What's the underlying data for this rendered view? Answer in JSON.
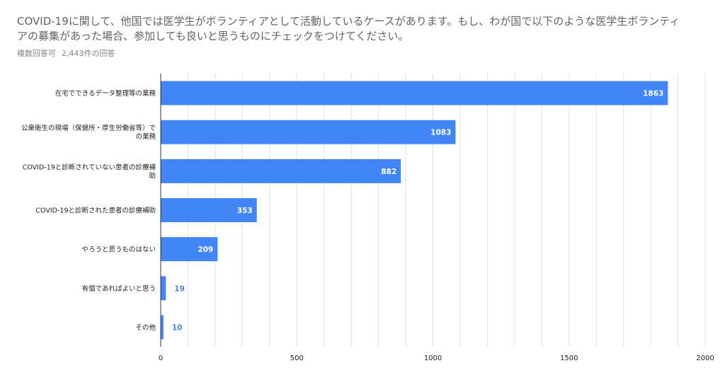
{
  "question": {
    "title_line1": "COVID-19に関して、他国では医学生がボランティアとして活動しているケースがあります。もし、わが国で以下のような医学生ボランティ",
    "title_line2": "アの募集があった場合、参加しても良いと思うものにチェックをつけてください。",
    "answer_type": "複数回答可",
    "response_count": "2,443件の回答"
  },
  "colors": {
    "bar": "#4285f4",
    "grid": "#e0e0e0",
    "axis": "#333333",
    "outside_label": "#4285f4"
  },
  "chart_data": {
    "type": "bar",
    "orientation": "horizontal",
    "categories": [
      [
        "在宅でできるデータ整理等の業務"
      ],
      [
        "公衆衛生の現場（保健所・厚生労働省等）で",
        "の業務"
      ],
      [
        "COVID-19と診断されていない患者の診療補",
        "助"
      ],
      [
        "COVID-19と診断された患者の診療補助"
      ],
      [
        "やろうと思うものはない"
      ],
      [
        "有償であればよいと思う"
      ],
      [
        "その他"
      ]
    ],
    "values": [
      1863,
      1083,
      882,
      353,
      209,
      19,
      10
    ],
    "xlim": [
      0,
      2000
    ],
    "xticks": [
      0,
      500,
      1000,
      1500,
      2000
    ],
    "grid": true
  }
}
